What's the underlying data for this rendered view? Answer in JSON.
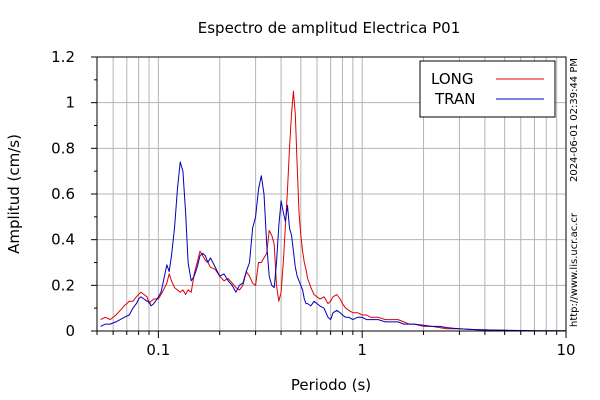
{
  "chart_data": {
    "type": "line",
    "title": "Espectro de amplitud Electrica P01",
    "xlabel": "Periodo (s)",
    "ylabel": "Amplitud (cm/s)",
    "xscale": "log",
    "xlim": [
      0.05,
      10
    ],
    "ylim": [
      0,
      1.2
    ],
    "xticks": [
      {
        "value": 0.1,
        "label": "0.1"
      },
      {
        "value": 1,
        "label": "1"
      },
      {
        "value": 10,
        "label": "10"
      }
    ],
    "yticks": [
      {
        "value": 0,
        "label": "0"
      },
      {
        "value": 0.2,
        "label": "0.2"
      },
      {
        "value": 0.4,
        "label": "0.4"
      },
      {
        "value": 0.6,
        "label": "0.6"
      },
      {
        "value": 0.8,
        "label": "0.8"
      },
      {
        "value": 1,
        "label": "1"
      },
      {
        "value": 1.2,
        "label": "1.2"
      }
    ],
    "grid": true,
    "legend_position": "top-right",
    "series": [
      {
        "name": "LONG",
        "color": "#dd0000",
        "x": [
          0.052,
          0.055,
          0.058,
          0.062,
          0.065,
          0.068,
          0.072,
          0.075,
          0.078,
          0.08,
          0.082,
          0.085,
          0.088,
          0.09,
          0.092,
          0.095,
          0.1,
          0.103,
          0.106,
          0.11,
          0.113,
          0.116,
          0.12,
          0.124,
          0.128,
          0.132,
          0.136,
          0.14,
          0.145,
          0.15,
          0.155,
          0.16,
          0.165,
          0.17,
          0.175,
          0.18,
          0.19,
          0.2,
          0.21,
          0.22,
          0.23,
          0.24,
          0.25,
          0.26,
          0.27,
          0.28,
          0.29,
          0.3,
          0.31,
          0.32,
          0.33,
          0.34,
          0.35,
          0.36,
          0.37,
          0.38,
          0.39,
          0.4,
          0.41,
          0.42,
          0.43,
          0.44,
          0.45,
          0.46,
          0.47,
          0.48,
          0.49,
          0.5,
          0.51,
          0.52,
          0.53,
          0.54,
          0.56,
          0.58,
          0.6,
          0.62,
          0.65,
          0.68,
          0.7,
          0.72,
          0.75,
          0.78,
          0.8,
          0.83,
          0.86,
          0.9,
          0.95,
          1.0,
          1.05,
          1.1,
          1.2,
          1.3,
          1.4,
          1.5,
          1.6,
          1.7,
          1.8,
          2.0,
          2.2,
          2.4,
          2.6,
          2.8,
          3.0,
          3.3,
          3.6,
          4.0,
          4.5,
          5,
          6,
          7,
          8,
          9,
          10
        ],
        "y": [
          0.05,
          0.06,
          0.05,
          0.07,
          0.09,
          0.11,
          0.13,
          0.13,
          0.15,
          0.16,
          0.17,
          0.16,
          0.15,
          0.12,
          0.13,
          0.14,
          0.14,
          0.16,
          0.18,
          0.21,
          0.25,
          0.22,
          0.19,
          0.18,
          0.17,
          0.18,
          0.16,
          0.18,
          0.17,
          0.25,
          0.3,
          0.35,
          0.33,
          0.31,
          0.3,
          0.28,
          0.27,
          0.24,
          0.22,
          0.23,
          0.21,
          0.19,
          0.18,
          0.2,
          0.26,
          0.24,
          0.21,
          0.2,
          0.3,
          0.3,
          0.32,
          0.34,
          0.44,
          0.42,
          0.38,
          0.2,
          0.13,
          0.17,
          0.3,
          0.46,
          0.62,
          0.8,
          0.95,
          1.05,
          0.95,
          0.72,
          0.52,
          0.42,
          0.35,
          0.3,
          0.27,
          0.23,
          0.19,
          0.16,
          0.15,
          0.14,
          0.15,
          0.12,
          0.13,
          0.15,
          0.16,
          0.14,
          0.12,
          0.1,
          0.09,
          0.08,
          0.08,
          0.07,
          0.07,
          0.06,
          0.06,
          0.05,
          0.05,
          0.05,
          0.04,
          0.03,
          0.03,
          0.02,
          0.02,
          0.015,
          0.01,
          0.01,
          0.01,
          0.008,
          0.006,
          0.005,
          0.004,
          0.003,
          0.002,
          0.001,
          0.001,
          0.001,
          0.001
        ]
      },
      {
        "name": "TRAN",
        "color": "#0000bb",
        "x": [
          0.052,
          0.055,
          0.058,
          0.062,
          0.065,
          0.068,
          0.072,
          0.075,
          0.078,
          0.08,
          0.082,
          0.085,
          0.088,
          0.09,
          0.092,
          0.095,
          0.1,
          0.103,
          0.106,
          0.11,
          0.113,
          0.116,
          0.12,
          0.124,
          0.128,
          0.132,
          0.136,
          0.14,
          0.145,
          0.15,
          0.155,
          0.16,
          0.165,
          0.17,
          0.175,
          0.18,
          0.19,
          0.2,
          0.21,
          0.22,
          0.23,
          0.24,
          0.25,
          0.26,
          0.27,
          0.28,
          0.29,
          0.3,
          0.31,
          0.32,
          0.33,
          0.34,
          0.35,
          0.36,
          0.37,
          0.38,
          0.39,
          0.4,
          0.41,
          0.42,
          0.43,
          0.44,
          0.45,
          0.46,
          0.47,
          0.48,
          0.49,
          0.5,
          0.51,
          0.52,
          0.53,
          0.54,
          0.56,
          0.58,
          0.6,
          0.62,
          0.65,
          0.68,
          0.7,
          0.72,
          0.75,
          0.78,
          0.8,
          0.83,
          0.86,
          0.9,
          0.95,
          1.0,
          1.05,
          1.1,
          1.2,
          1.3,
          1.4,
          1.5,
          1.6,
          1.7,
          1.8,
          2.0,
          2.2,
          2.4,
          2.6,
          2.8,
          3.0,
          3.3,
          3.6,
          4.0,
          4.5,
          5,
          6,
          7,
          8,
          9,
          10
        ],
        "y": [
          0.02,
          0.03,
          0.03,
          0.04,
          0.05,
          0.06,
          0.07,
          0.1,
          0.12,
          0.14,
          0.15,
          0.14,
          0.13,
          0.13,
          0.11,
          0.12,
          0.15,
          0.17,
          0.22,
          0.29,
          0.26,
          0.33,
          0.45,
          0.62,
          0.74,
          0.7,
          0.52,
          0.3,
          0.22,
          0.24,
          0.28,
          0.33,
          0.34,
          0.33,
          0.3,
          0.32,
          0.28,
          0.24,
          0.25,
          0.22,
          0.2,
          0.17,
          0.2,
          0.21,
          0.26,
          0.3,
          0.45,
          0.5,
          0.62,
          0.68,
          0.6,
          0.38,
          0.24,
          0.2,
          0.19,
          0.3,
          0.46,
          0.57,
          0.52,
          0.48,
          0.55,
          0.45,
          0.42,
          0.35,
          0.28,
          0.24,
          0.22,
          0.2,
          0.18,
          0.14,
          0.12,
          0.12,
          0.11,
          0.13,
          0.12,
          0.11,
          0.1,
          0.06,
          0.05,
          0.08,
          0.09,
          0.08,
          0.07,
          0.06,
          0.06,
          0.05,
          0.06,
          0.06,
          0.05,
          0.05,
          0.05,
          0.04,
          0.04,
          0.04,
          0.03,
          0.03,
          0.03,
          0.025,
          0.02,
          0.02,
          0.015,
          0.012,
          0.01,
          0.008,
          0.006,
          0.005,
          0.004,
          0.003,
          0.002,
          0.001,
          0.001,
          0.001,
          0.001
        ]
      }
    ],
    "side_labels": {
      "timestamp": "2024-06-01 02:39:44 PM",
      "url": "http://www.lis.ucr.ac.cr"
    }
  }
}
